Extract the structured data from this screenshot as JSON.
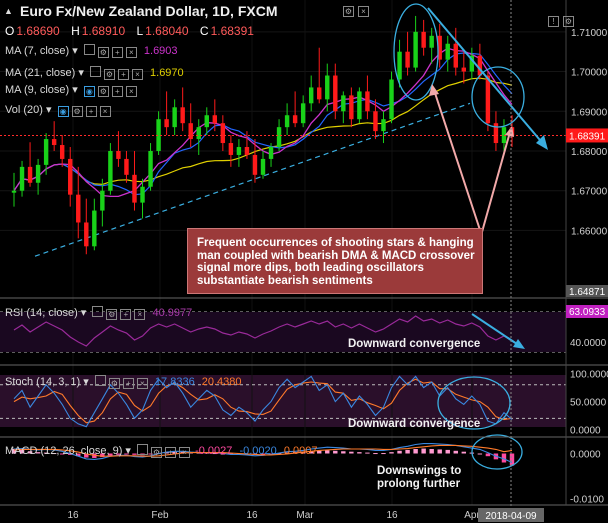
{
  "header": {
    "title": "Euro Fx/New Zealand Dollar, 1D, FXCM",
    "ohlc": [
      {
        "k": "O",
        "v": "1.68690"
      },
      {
        "k": "H",
        "v": "1.68910"
      },
      {
        "k": "L",
        "v": "1.68040"
      },
      {
        "k": "C",
        "v": "1.68391"
      }
    ]
  },
  "indicators": {
    "ma7": {
      "label": "MA (7, close)",
      "value": "1.6903",
      "color": "#cc33cc"
    },
    "ma21": {
      "label": "MA (21, close)",
      "value": "1.6970",
      "color": "#e0d000"
    },
    "ma9": {
      "label": "MA (9, close)",
      "color": "#2266ff"
    },
    "vol": {
      "label": "Vol (20)"
    }
  },
  "callout": "Frequent occurrences of shooting stars & hanging man coupled with bearish DMA & MACD crossover signal more dips, both leading oscillators substantiate bearish sentiments",
  "annotations": {
    "rsi": "Downward convergence",
    "stoch": "Downward convergence",
    "macd_line1": "Downswings to",
    "macd_line2": "prolong further"
  },
  "rsi_panel": {
    "label": "RSI (14, close)",
    "value": "40.9977",
    "current_box": "63.0933"
  },
  "stoch_panel": {
    "label": "Stoch (14, 3, 1)",
    "k": "17.8336",
    "d": "20.4380"
  },
  "macd_panel": {
    "label": "MACD (12, 26, close, 9)",
    "hist": "-0.0027",
    "macd": "-0.0020",
    "signal": "0.0007"
  },
  "price_axis": {
    "labels": [
      "1.71000",
      "1.70000",
      "1.69000",
      "1.68000",
      "1.67000",
      "1.66000"
    ],
    "current": "1.68391",
    "bottom_cut": "1.64871"
  },
  "rsi_axis": [
    "40.0000"
  ],
  "stoch_axis": [
    "100.0000",
    "50.0000",
    "0.0000"
  ],
  "macd_axis": [
    "0.0000",
    "-0.0100"
  ],
  "time_axis": {
    "labels": [
      "16",
      "Feb",
      "16",
      "Mar",
      "16",
      "Apr"
    ],
    "current_date": "2018-04-09"
  },
  "chart_data": {
    "type": "candlestick",
    "ylim": [
      1.645,
      1.716
    ],
    "yticks": [
      1.71,
      1.7,
      1.69,
      1.68,
      1.67,
      1.66
    ],
    "candles": [
      [
        1.6695,
        1.6745,
        1.666,
        1.67
      ],
      [
        1.67,
        1.6775,
        1.6685,
        1.676
      ],
      [
        1.676,
        1.6822,
        1.671,
        1.672
      ],
      [
        1.672,
        1.678,
        1.669,
        1.6765
      ],
      [
        1.6765,
        1.6845,
        1.674,
        1.683
      ],
      [
        1.683,
        1.6875,
        1.68,
        1.6815
      ],
      [
        1.6815,
        1.684,
        1.676,
        1.678
      ],
      [
        1.678,
        1.681,
        1.666,
        1.669
      ],
      [
        1.669,
        1.676,
        1.658,
        1.662
      ],
      [
        1.662,
        1.668,
        1.654,
        1.656
      ],
      [
        1.656,
        1.668,
        1.655,
        1.665
      ],
      [
        1.665,
        1.673,
        1.661,
        1.67
      ],
      [
        1.67,
        1.682,
        1.669,
        1.68
      ],
      [
        1.68,
        1.685,
        1.676,
        1.678
      ],
      [
        1.678,
        1.68,
        1.672,
        1.674
      ],
      [
        1.674,
        1.68,
        1.665,
        1.667
      ],
      [
        1.667,
        1.673,
        1.663,
        1.671
      ],
      [
        1.671,
        1.682,
        1.67,
        1.68
      ],
      [
        1.68,
        1.69,
        1.679,
        1.688
      ],
      [
        1.688,
        1.695,
        1.684,
        1.686
      ],
      [
        1.686,
        1.693,
        1.684,
        1.691
      ],
      [
        1.691,
        1.696,
        1.685,
        1.687
      ],
      [
        1.687,
        1.692,
        1.681,
        1.683
      ],
      [
        1.683,
        1.688,
        1.679,
        1.686
      ],
      [
        1.686,
        1.691,
        1.684,
        1.689
      ],
      [
        1.689,
        1.693,
        1.685,
        1.687
      ],
      [
        1.687,
        1.689,
        1.68,
        1.682
      ],
      [
        1.682,
        1.684,
        1.676,
        1.679
      ],
      [
        1.679,
        1.683,
        1.676,
        1.681
      ],
      [
        1.681,
        1.685,
        1.678,
        1.679
      ],
      [
        1.679,
        1.683,
        1.672,
        1.674
      ],
      [
        1.674,
        1.68,
        1.673,
        1.678
      ],
      [
        1.678,
        1.682,
        1.676,
        1.681
      ],
      [
        1.681,
        1.688,
        1.68,
        1.686
      ],
      [
        1.686,
        1.692,
        1.684,
        1.689
      ],
      [
        1.689,
        1.695,
        1.686,
        1.687
      ],
      [
        1.687,
        1.694,
        1.686,
        1.692
      ],
      [
        1.692,
        1.699,
        1.69,
        1.696
      ],
      [
        1.696,
        1.706,
        1.692,
        1.693
      ],
      [
        1.693,
        1.702,
        1.69,
        1.699
      ],
      [
        1.699,
        1.702,
        1.688,
        1.69
      ],
      [
        1.69,
        1.695,
        1.687,
        1.694
      ],
      [
        1.694,
        1.696,
        1.686,
        1.688
      ],
      [
        1.688,
        1.696,
        1.687,
        1.695
      ],
      [
        1.695,
        1.699,
        1.688,
        1.69
      ],
      [
        1.69,
        1.693,
        1.683,
        1.685
      ],
      [
        1.685,
        1.69,
        1.682,
        1.688
      ],
      [
        1.688,
        1.7,
        1.687,
        1.698
      ],
      [
        1.698,
        1.708,
        1.696,
        1.705
      ],
      [
        1.705,
        1.71,
        1.699,
        1.701
      ],
      [
        1.701,
        1.714,
        1.7,
        1.71
      ],
      [
        1.71,
        1.713,
        1.704,
        1.706
      ],
      [
        1.706,
        1.711,
        1.702,
        1.709
      ],
      [
        1.709,
        1.712,
        1.701,
        1.703
      ],
      [
        1.703,
        1.709,
        1.7,
        1.707
      ],
      [
        1.707,
        1.711,
        1.699,
        1.701
      ],
      [
        1.701,
        1.705,
        1.697,
        1.7
      ],
      [
        1.7,
        1.706,
        1.698,
        1.704
      ],
      [
        1.704,
        1.707,
        1.698,
        1.699
      ],
      [
        1.699,
        1.7,
        1.685,
        1.687
      ],
      [
        1.687,
        1.69,
        1.68,
        1.682
      ],
      [
        1.682,
        1.688,
        1.679,
        1.686
      ],
      [
        1.686,
        1.689,
        1.681,
        1.6839
      ]
    ],
    "current_price": 1.68391,
    "rsi_ylim": [
      20,
      80
    ],
    "rsi": [
      52,
      57,
      50,
      55,
      60,
      56,
      52,
      45,
      40,
      36,
      44,
      50,
      56,
      52,
      49,
      42,
      46,
      54,
      58,
      55,
      58,
      54,
      50,
      53,
      55,
      53,
      49,
      47,
      50,
      48,
      44,
      48,
      51,
      55,
      58,
      55,
      58,
      61,
      58,
      61,
      55,
      58,
      54,
      58,
      54,
      50,
      53,
      58,
      63,
      60,
      66,
      61,
      63,
      59,
      62,
      58,
      56,
      59,
      55,
      46,
      42,
      46,
      41
    ],
    "rsi_levels": [
      70,
      30
    ],
    "stoch_ylim": [
      -8,
      110
    ],
    "stoch_k": [
      55,
      70,
      40,
      60,
      80,
      65,
      45,
      20,
      10,
      5,
      30,
      55,
      80,
      65,
      45,
      20,
      35,
      70,
      90,
      75,
      85,
      65,
      40,
      55,
      70,
      60,
      35,
      25,
      40,
      30,
      15,
      35,
      50,
      75,
      90,
      75,
      85,
      95,
      70,
      80,
      50,
      65,
      40,
      60,
      45,
      25,
      40,
      75,
      95,
      80,
      95,
      75,
      85,
      60,
      75,
      55,
      45,
      60,
      45,
      15,
      10,
      30,
      18
    ],
    "stoch_d": [
      50,
      58,
      55,
      57,
      60,
      68,
      63,
      43,
      25,
      12,
      15,
      30,
      55,
      67,
      63,
      43,
      33,
      42,
      65,
      78,
      83,
      75,
      63,
      53,
      55,
      62,
      55,
      40,
      33,
      32,
      28,
      27,
      33,
      53,
      72,
      80,
      83,
      85,
      83,
      82,
      67,
      65,
      52,
      55,
      48,
      43,
      37,
      47,
      70,
      83,
      90,
      83,
      85,
      73,
      73,
      63,
      58,
      53,
      50,
      40,
      23,
      18,
      20
    ],
    "stoch_levels": [
      80,
      20
    ],
    "macd_ylim": [
      -0.011,
      0.003
    ],
    "macd_hist": [
      0.001,
      0.0008,
      0.0005,
      0.0003,
      0.0002,
      0.0001,
      -0.0001,
      -0.0003,
      -0.0006,
      -0.0009,
      -0.001,
      -0.0008,
      -0.0005,
      -0.0003,
      -0.0002,
      -0.0003,
      -0.0004,
      -0.0002,
      0.0001,
      0.0003,
      0.0004,
      0.0004,
      0.0003,
      0.0002,
      0.0002,
      0.0001,
      0.0,
      -0.0001,
      -0.0001,
      -0.0002,
      -0.0003,
      -0.0002,
      -0.0001,
      0.0001,
      0.0002,
      0.0003,
      0.0004,
      0.0005,
      0.0006,
      0.0007,
      0.0006,
      0.0005,
      0.0004,
      0.0003,
      0.0002,
      0.0001,
      0.0001,
      0.0003,
      0.0006,
      0.0008,
      0.001,
      0.0011,
      0.001,
      0.0009,
      0.0008,
      0.0006,
      0.0004,
      0.0002,
      0.0,
      -0.0006,
      -0.0013,
      -0.002,
      -0.0027
    ],
    "macd_line": [
      0.001,
      0.0011,
      0.0009,
      0.0008,
      0.0009,
      0.0008,
      0.0005,
      0.0,
      -0.0006,
      -0.0012,
      -0.0013,
      -0.0011,
      -0.0006,
      -0.0004,
      -0.0004,
      -0.0007,
      -0.0008,
      -0.0005,
      0.0,
      0.0003,
      0.0005,
      0.0005,
      0.0003,
      0.0002,
      0.0002,
      0.0002,
      0.0,
      -0.0002,
      -0.0002,
      -0.0003,
      -0.0005,
      -0.0004,
      -0.0002,
      0.0001,
      0.0004,
      0.0005,
      0.0007,
      0.001,
      0.0012,
      0.0014,
      0.0013,
      0.0012,
      0.001,
      0.001,
      0.0009,
      0.0007,
      0.0007,
      0.0009,
      0.0013,
      0.0016,
      0.002,
      0.0022,
      0.0022,
      0.0021,
      0.002,
      0.0018,
      0.0015,
      0.0012,
      0.0009,
      0.0002,
      -0.0006,
      -0.0012,
      -0.002
    ],
    "signal_line": [
      0.0008,
      0.0009,
      0.0009,
      0.0009,
      0.0009,
      0.0009,
      0.0008,
      0.0006,
      0.0003,
      -0.0001,
      -0.0004,
      -0.0006,
      -0.0006,
      -0.0005,
      -0.0005,
      -0.0005,
      -0.0006,
      -0.0006,
      -0.0005,
      -0.0003,
      -0.0001,
      0.0001,
      0.0002,
      0.0002,
      0.0002,
      0.0002,
      0.0002,
      0.0001,
      0.0,
      -0.0001,
      -0.0002,
      -0.0003,
      -0.0003,
      -0.0002,
      -0.0001,
      0.0001,
      0.0003,
      0.0005,
      0.0007,
      0.0008,
      0.0009,
      0.001,
      0.001,
      0.001,
      0.001,
      0.001,
      0.0009,
      0.0009,
      0.001,
      0.0011,
      0.0013,
      0.0015,
      0.0017,
      0.0018,
      0.0018,
      0.0018,
      0.0017,
      0.0016,
      0.0014,
      0.0012,
      0.0009,
      0.0004,
      0.0007
    ]
  },
  "colors": {
    "bull": "#19d219",
    "bear": "#ff1a1a",
    "ma7": "#cc33cc",
    "ma21": "#e0d000",
    "ma9": "#2266ff",
    "trend": "#3aaee0",
    "rsi_line": "#9a2a9a",
    "stoch_k": "#3a88e0",
    "stoch_d": "#ff7a2a",
    "macd_hist_pos": "#ff9ad0",
    "macd_hist_neg": "#ff4aa0",
    "macd_line": "#3a88e0",
    "signal": "#ff7a2a"
  }
}
